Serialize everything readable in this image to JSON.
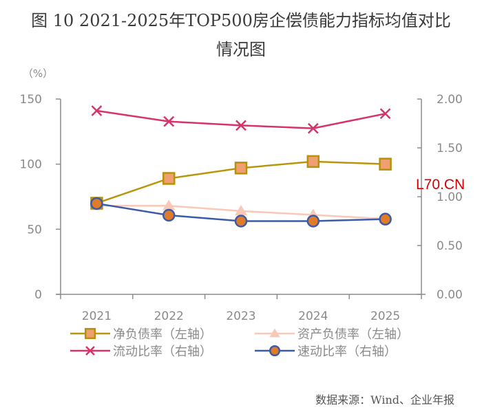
{
  "title_line1": "图 10 2021-2025年TOP500房企偿债能力指标均值对比",
  "title_line2": "情况图",
  "source": "数据来源：Wind、企业年报",
  "watermark": "L70.CN",
  "chart_data": {
    "type": "line",
    "title": "图 10 2021-2025年TOP500房企偿债能力指标均值对比情况图",
    "categories": [
      "2021",
      "2022",
      "2023",
      "2024",
      "2025"
    ],
    "left_axis": {
      "label": "（%）",
      "range": [
        0,
        150
      ],
      "ticks": [
        "0",
        "50",
        "100",
        "150"
      ],
      "tick_values": [
        0,
        50,
        100,
        150
      ]
    },
    "right_axis": {
      "label": "",
      "range": [
        0,
        2
      ],
      "ticks": [
        "0.00",
        "0.50",
        "1.00",
        "1.50",
        "2.00"
      ],
      "tick_values": [
        0,
        0.5,
        1.0,
        1.5,
        2.0
      ]
    },
    "grid": false,
    "legend_position": "bottom",
    "series": [
      {
        "name": "净负债率（左轴）",
        "axis": "left",
        "marker": "square",
        "line_color": "#b8960c",
        "marker_fill": "#f0a070",
        "marker_stroke": "#b8900a",
        "values": [
          70,
          89,
          97,
          102,
          100
        ]
      },
      {
        "name": "资产负债率（左轴）",
        "axis": "left",
        "marker": "triangle",
        "line_color": "#f7c9b6",
        "marker_fill": "#f7c9b6",
        "marker_stroke": "#f7c9b6",
        "values": [
          68,
          68,
          64,
          61,
          58
        ]
      },
      {
        "name": "流动比率（右轴）",
        "axis": "right",
        "marker": "x",
        "line_color": "#d6336c",
        "marker_fill": "none",
        "marker_stroke": "#d6336c",
        "values": [
          1.88,
          1.77,
          1.73,
          1.7,
          1.85
        ]
      },
      {
        "name": "速动比率（右轴）",
        "axis": "right",
        "marker": "circle",
        "line_color": "#3a5ba8",
        "marker_fill": "#e07b2a",
        "marker_stroke": "#3a5ba8",
        "values": [
          0.93,
          0.81,
          0.75,
          0.75,
          0.77
        ]
      }
    ]
  }
}
